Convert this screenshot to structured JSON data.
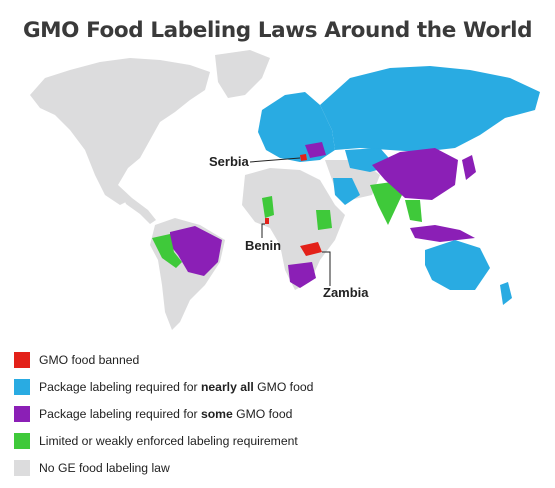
{
  "title": "GMO Food Labeling Laws Around the World",
  "colors": {
    "banned": "#e32119",
    "nearly_all": "#29abe2",
    "some": "#8b1fb6",
    "limited": "#3fc93a",
    "none": "#dcdcdd"
  },
  "callouts": {
    "serbia": "Serbia",
    "benin": "Benin",
    "zambia": "Zambia"
  },
  "legend": [
    {
      "id": "banned",
      "color": "#e32119",
      "pre": "GMO food banned",
      "bold": "",
      "post": ""
    },
    {
      "id": "nearly_all",
      "color": "#29abe2",
      "pre": "Package labeling required for ",
      "bold": "nearly all",
      "post": " GMO food"
    },
    {
      "id": "some",
      "color": "#8b1fb6",
      "pre": "Package labeling required for ",
      "bold": "some",
      "post": " GMO food"
    },
    {
      "id": "limited",
      "color": "#3fc93a",
      "pre": "Limited or weakly enforced labeling requirement",
      "bold": "",
      "post": ""
    },
    {
      "id": "none",
      "color": "#dcdcdd",
      "pre": "No GE food labeling law",
      "bold": "",
      "post": ""
    }
  ]
}
